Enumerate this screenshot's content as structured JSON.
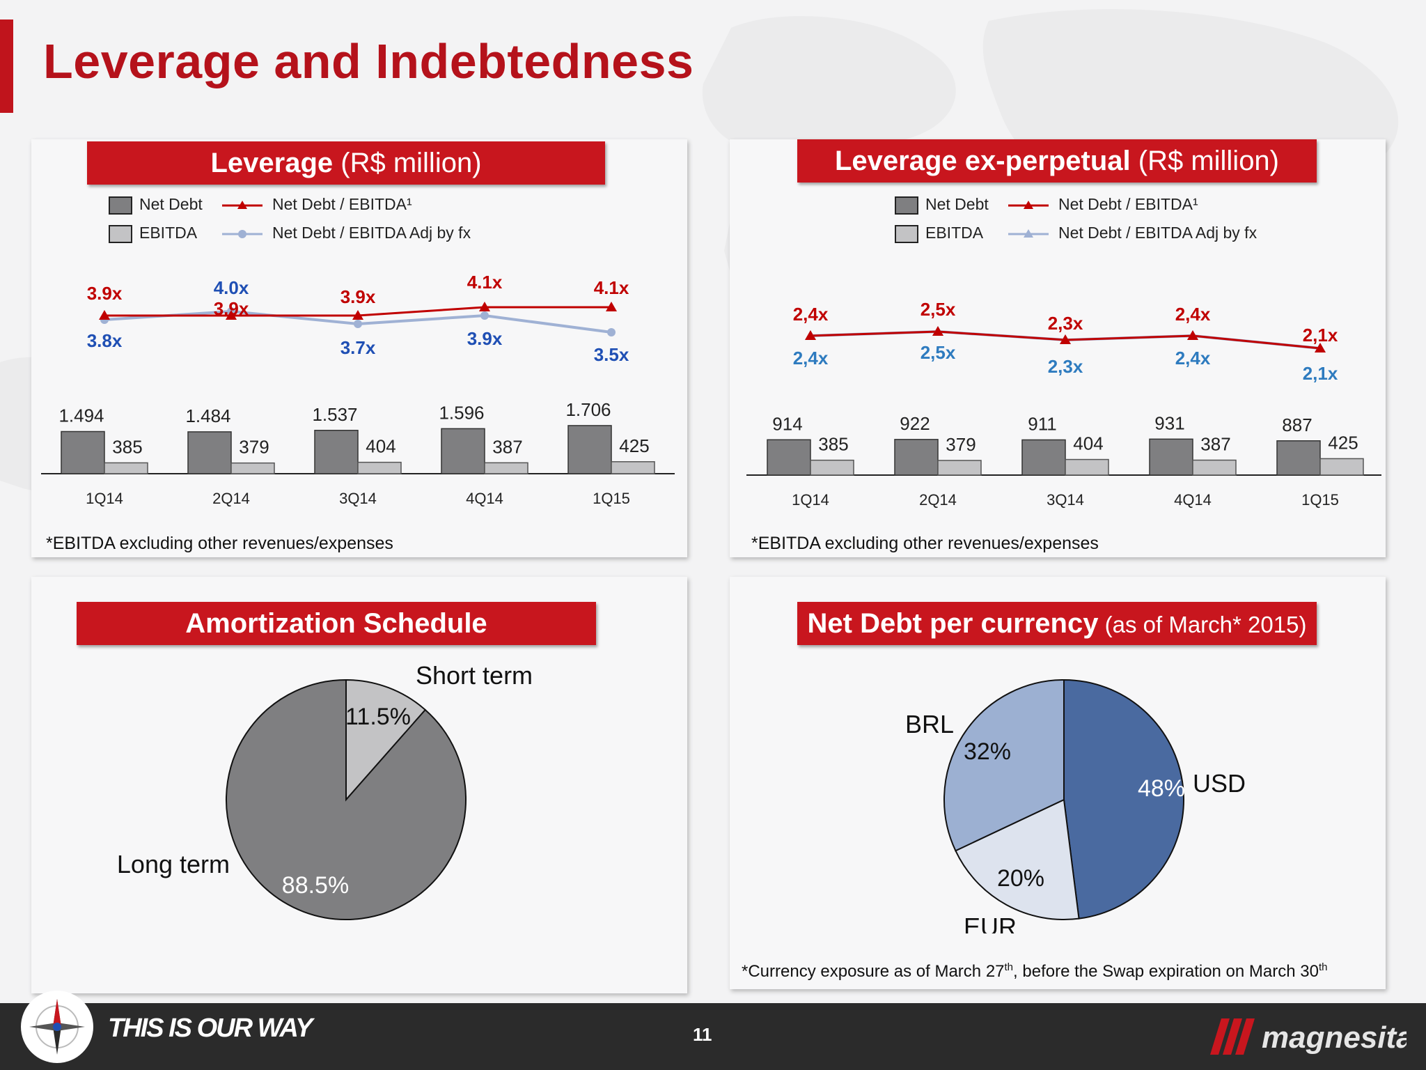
{
  "page": {
    "title": "Leverage and Indebtedness",
    "page_number": "11",
    "slogan": "THIS IS OUR WAY",
    "brand": "magnesita"
  },
  "colors": {
    "accent_red": "#c8161e",
    "bar_dark": "#7f7f81",
    "bar_light": "#c3c3c5",
    "line_red": "#c00000",
    "line_blue": "#9fb1d4",
    "label_blue": "#1f4fb4",
    "label_blue_2": "#2e7bbf",
    "pie_usd": "#4a6aa0",
    "pie_brl": "#9cb0d2",
    "pie_eur": "#dde3ee"
  },
  "panels": {
    "leverage": {
      "title_bold": "Leverage",
      "title_sub": " (R$ million)",
      "note": "*EBITDA excluding other revenues/expenses"
    },
    "leverage_ex": {
      "title_bold": "Leverage ex-perpetual",
      "title_sub": " (R$ million)",
      "note": "*EBITDA excluding other revenues/expenses"
    },
    "amortization": {
      "title": "Amortization Schedule"
    },
    "currency": {
      "title_bold": "Net Debt per currency",
      "title_sub": " (as of March* 2015)",
      "note_prefix": "*Currency exposure as of March 27",
      "note_sup1": "th",
      "note_mid": ",  before the Swap expiration on March 30",
      "note_sup2": "th"
    }
  },
  "legend": {
    "net_debt": "Net Debt",
    "ebitda": "EBITDA",
    "ratio": "Net Debt / EBITDA¹",
    "ratio_fx": "Net Debt / EBITDA Adj by fx"
  },
  "chart_data": [
    {
      "type": "bar",
      "title": "Leverage (R$ million)",
      "categories": [
        "1Q14",
        "2Q14",
        "3Q14",
        "4Q14",
        "1Q15"
      ],
      "series": [
        {
          "name": "Net Debt",
          "values": [
            1494,
            1484,
            1537,
            1596,
            1706
          ],
          "labels": [
            "1.494",
            "1.484",
            "1.537",
            "1.596",
            "1.706"
          ]
        },
        {
          "name": "EBITDA",
          "values": [
            385,
            379,
            404,
            387,
            425
          ],
          "labels": [
            "385",
            "379",
            "404",
            "387",
            "425"
          ]
        },
        {
          "name": "Net Debt / EBITDA¹",
          "values": [
            3.9,
            3.9,
            3.9,
            4.1,
            4.1
          ],
          "labels": [
            "3.9x",
            "3.9x",
            "3.9x",
            "4.1x",
            "4.1x"
          ]
        },
        {
          "name": "Net Debt / EBITDA Adj by fx",
          "values": [
            3.8,
            4.0,
            3.7,
            3.9,
            3.5
          ],
          "labels": [
            "3.8x",
            "4.0x",
            "3.7x",
            "3.9x",
            "3.5x"
          ]
        }
      ],
      "legend_position": "top-left",
      "grid": false
    },
    {
      "type": "bar",
      "title": "Leverage ex-perpetual (R$ million)",
      "categories": [
        "1Q14",
        "2Q14",
        "3Q14",
        "4Q14",
        "1Q15"
      ],
      "series": [
        {
          "name": "Net Debt",
          "values": [
            914,
            922,
            911,
            931,
            887
          ],
          "labels": [
            "914",
            "922",
            "911",
            "931",
            "887"
          ]
        },
        {
          "name": "EBITDA",
          "values": [
            385,
            379,
            404,
            387,
            425
          ],
          "labels": [
            "385",
            "379",
            "404",
            "387",
            "425"
          ]
        },
        {
          "name": "Net Debt / EBITDA¹",
          "values": [
            2.4,
            2.5,
            2.3,
            2.4,
            2.1
          ],
          "labels": [
            "2,4x",
            "2,5x",
            "2,3x",
            "2,4x",
            "2,1x"
          ]
        },
        {
          "name": "Net Debt / EBITDA Adj by fx",
          "values": [
            2.4,
            2.5,
            2.3,
            2.4,
            2.1
          ],
          "labels": [
            "2,4x",
            "2,5x",
            "2,3x",
            "2,4x",
            "2,1x"
          ]
        }
      ],
      "legend_position": "top-left",
      "grid": false
    },
    {
      "type": "pie",
      "title": "Amortization Schedule",
      "slices": [
        {
          "name": "Short term",
          "value": 11.5,
          "label": "11.5%"
        },
        {
          "name": "Long term",
          "value": 88.5,
          "label": "88.5%"
        }
      ]
    },
    {
      "type": "pie",
      "title": "Net Debt per currency (as of March* 2015)",
      "slices": [
        {
          "name": "USD",
          "value": 48,
          "label": "48%"
        },
        {
          "name": "EUR",
          "value": 20,
          "label": "20%"
        },
        {
          "name": "BRL",
          "value": 32,
          "label": "32%"
        }
      ]
    }
  ]
}
